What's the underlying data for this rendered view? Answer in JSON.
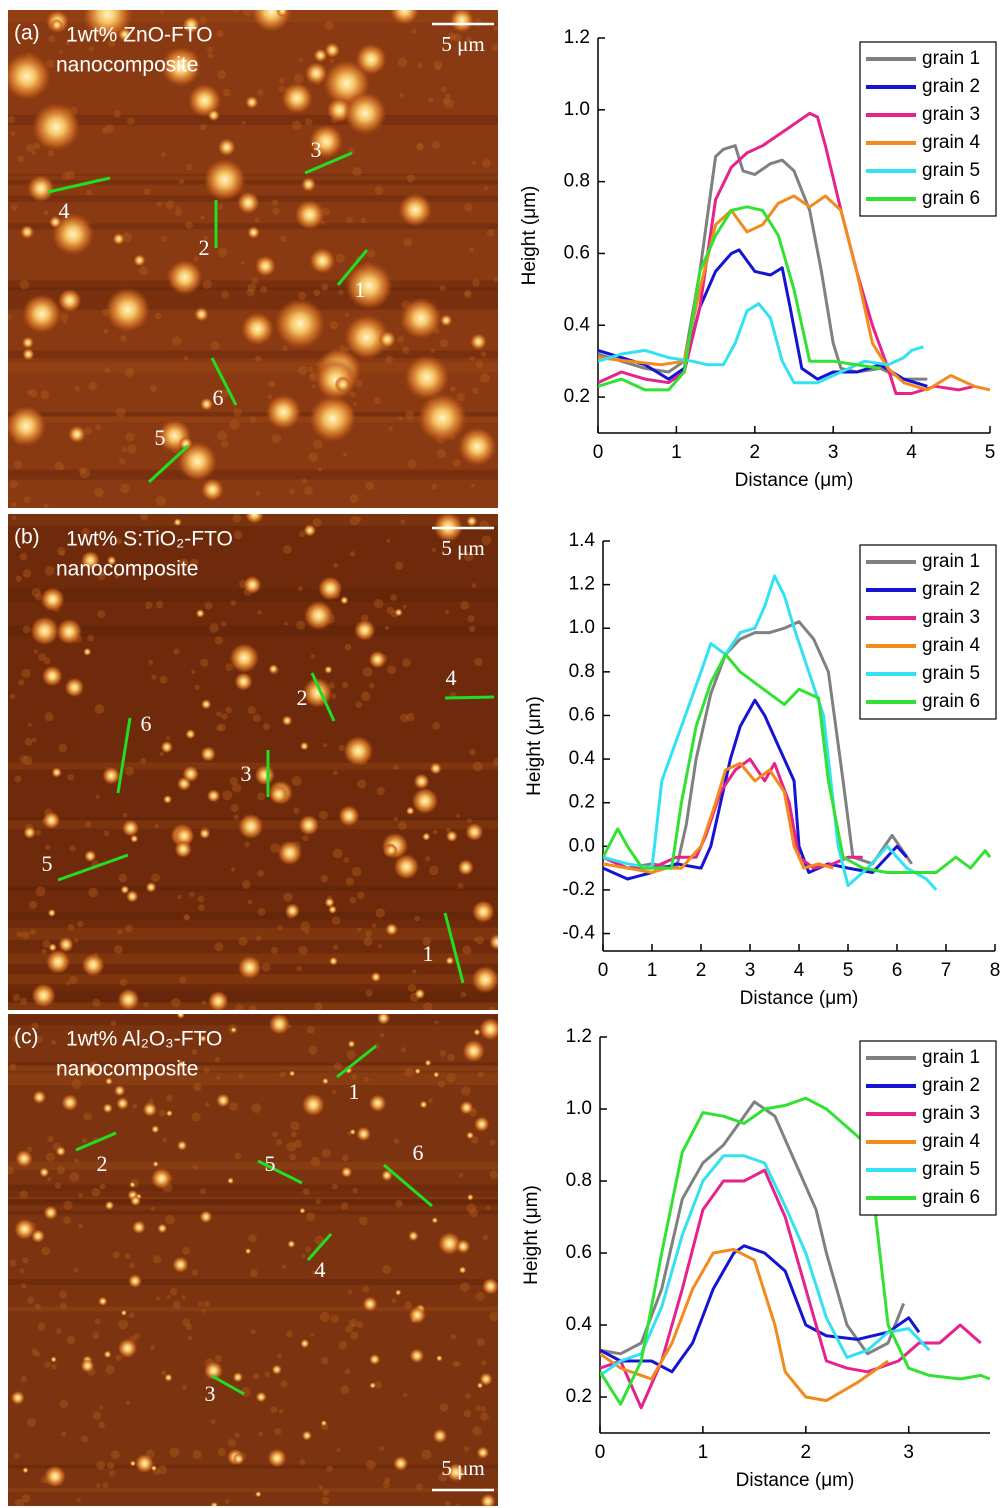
{
  "images": [
    {
      "panel": "(a)",
      "title": [
        "1wt% ZnO-FTO",
        "nanocomposite"
      ],
      "scale_bar": "5 μm",
      "markers": [
        "1",
        "2",
        "3",
        "4",
        "5",
        "6"
      ]
    },
    {
      "panel": "(b)",
      "title": [
        "1wt% S:TiO₂-FTO",
        "nanocomposite"
      ],
      "scale_bar": "5 μm",
      "markers": [
        "1",
        "2",
        "3",
        "4",
        "5",
        "6"
      ]
    },
    {
      "panel": "(c)",
      "title": [
        "1wt% Al₂O₃-FTO",
        "nanocomposite"
      ],
      "scale_bar": "5 μm",
      "markers": [
        "1",
        "2",
        "3",
        "4",
        "5",
        "6"
      ]
    }
  ],
  "chart_data": [
    {
      "type": "line",
      "xlabel": "Distance (μm)",
      "ylabel": "Height (μm)",
      "xlim": [
        0,
        5
      ],
      "ylim": [
        0.1,
        1.2
      ],
      "xticks": [
        0,
        1,
        2,
        3,
        4,
        5
      ],
      "yticks": [
        0.2,
        0.4,
        0.6,
        0.8,
        {
          "value": 1,
          "label": "1.0"
        },
        1.2
      ],
      "series": [
        {
          "name": "grain 1",
          "color": "#808080",
          "x": [
            0,
            0.3,
            0.6,
            0.9,
            1.1,
            1.3,
            1.5,
            1.6,
            1.75,
            1.85,
            2.0,
            2.2,
            2.35,
            2.5,
            2.7,
            2.85,
            3.0,
            3.1,
            3.3,
            3.6,
            3.9,
            4.2
          ],
          "values": [
            0.32,
            0.3,
            0.28,
            0.27,
            0.3,
            0.55,
            0.87,
            0.89,
            0.9,
            0.83,
            0.82,
            0.85,
            0.86,
            0.83,
            0.72,
            0.55,
            0.35,
            0.28,
            0.27,
            0.28,
            0.25,
            0.25
          ]
        },
        {
          "name": "grain 2",
          "color": "#1414d2",
          "x": [
            0,
            0.3,
            0.6,
            0.9,
            1.1,
            1.3,
            1.5,
            1.7,
            1.8,
            2.0,
            2.2,
            2.35,
            2.45,
            2.6,
            2.8,
            3.0,
            3.3,
            3.6,
            3.9,
            4.2
          ],
          "values": [
            0.33,
            0.31,
            0.29,
            0.25,
            0.28,
            0.45,
            0.55,
            0.6,
            0.61,
            0.55,
            0.54,
            0.56,
            0.45,
            0.28,
            0.25,
            0.27,
            0.27,
            0.29,
            0.25,
            0.23
          ]
        },
        {
          "name": "grain 3",
          "color": "#e6228c",
          "x": [
            0,
            0.3,
            0.6,
            0.9,
            1.1,
            1.3,
            1.5,
            1.7,
            1.9,
            2.1,
            2.3,
            2.5,
            2.7,
            2.8,
            2.9,
            3.1,
            3.3,
            3.5,
            3.7,
            3.8,
            4.0,
            4.3,
            4.6,
            4.8
          ],
          "values": [
            0.24,
            0.27,
            0.25,
            0.24,
            0.27,
            0.45,
            0.75,
            0.84,
            0.88,
            0.9,
            0.93,
            0.96,
            0.99,
            0.98,
            0.9,
            0.72,
            0.55,
            0.4,
            0.28,
            0.21,
            0.21,
            0.23,
            0.22,
            0.23
          ]
        },
        {
          "name": "grain 4",
          "color": "#f28a1c",
          "x": [
            0,
            0.4,
            0.8,
            1.1,
            1.3,
            1.5,
            1.7,
            1.9,
            2.1,
            2.3,
            2.5,
            2.7,
            2.9,
            3.1,
            3.3,
            3.5,
            3.7,
            3.9,
            4.2,
            4.5,
            4.8,
            5.0
          ],
          "values": [
            0.31,
            0.3,
            0.29,
            0.3,
            0.5,
            0.68,
            0.72,
            0.66,
            0.68,
            0.74,
            0.76,
            0.73,
            0.76,
            0.72,
            0.55,
            0.35,
            0.28,
            0.24,
            0.22,
            0.26,
            0.23,
            0.22
          ]
        },
        {
          "name": "grain 5",
          "color": "#32e2f2",
          "x": [
            0,
            0.3,
            0.6,
            0.9,
            1.2,
            1.4,
            1.6,
            1.75,
            1.9,
            2.05,
            2.2,
            2.35,
            2.5,
            2.8,
            3.1,
            3.4,
            3.7,
            3.9,
            4.0,
            4.15
          ],
          "values": [
            0.3,
            0.32,
            0.33,
            0.31,
            0.3,
            0.29,
            0.29,
            0.35,
            0.44,
            0.46,
            0.42,
            0.3,
            0.24,
            0.24,
            0.27,
            0.3,
            0.29,
            0.31,
            0.33,
            0.34
          ]
        },
        {
          "name": "grain 6",
          "color": "#32e232",
          "x": [
            0,
            0.3,
            0.6,
            0.9,
            1.1,
            1.3,
            1.5,
            1.7,
            1.9,
            2.1,
            2.3,
            2.5,
            2.7,
            3.0,
            3.3,
            3.6
          ],
          "values": [
            0.23,
            0.25,
            0.22,
            0.22,
            0.27,
            0.55,
            0.65,
            0.72,
            0.73,
            0.72,
            0.65,
            0.5,
            0.3,
            0.3,
            0.29,
            0.28
          ]
        }
      ]
    },
    {
      "type": "line",
      "xlabel": "Distance (μm)",
      "ylabel": "Height (μm)",
      "xlim": [
        0,
        8
      ],
      "ylim": [
        -0.48,
        1.4
      ],
      "xticks": [
        0,
        1,
        2,
        3,
        4,
        5,
        6,
        7,
        8
      ],
      "yticks": [
        -0.4,
        -0.2,
        {
          "value": 0,
          "label": "0.0"
        },
        0.2,
        0.4,
        0.6,
        0.8,
        {
          "value": 1,
          "label": "1.0"
        },
        1.2,
        1.4
      ],
      "series": [
        {
          "name": "grain 1",
          "color": "#808080",
          "x": [
            0,
            0.5,
            1,
            1.5,
            1.7,
            1.9,
            2.2,
            2.5,
            2.8,
            3.1,
            3.4,
            3.7,
            4.0,
            4.3,
            4.6,
            4.9,
            5.1,
            5.5,
            5.9,
            6.3
          ],
          "values": [
            -0.05,
            -0.1,
            -0.08,
            -0.1,
            0.1,
            0.4,
            0.7,
            0.88,
            0.95,
            0.98,
            0.98,
            1.0,
            1.03,
            0.95,
            0.8,
            0.3,
            -0.05,
            -0.08,
            0.05,
            -0.08
          ]
        },
        {
          "name": "grain 2",
          "color": "#1414d2",
          "x": [
            0,
            0.5,
            1,
            1.5,
            2,
            2.2,
            2.4,
            2.6,
            2.8,
            3.1,
            3.3,
            3.6,
            3.9,
            4.0,
            4.2,
            4.6,
            5.0,
            5.5,
            6.0,
            6.2
          ],
          "values": [
            -0.1,
            -0.15,
            -0.12,
            -0.08,
            -0.1,
            0,
            0.2,
            0.4,
            0.55,
            0.67,
            0.6,
            0.45,
            0.3,
            0,
            -0.12,
            -0.08,
            -0.1,
            -0.12,
            0,
            -0.05
          ]
        },
        {
          "name": "grain 3",
          "color": "#e6228c",
          "x": [
            0,
            0.5,
            1,
            1.5,
            1.9,
            2.1,
            2.4,
            2.7,
            3.0,
            3.3,
            3.5,
            3.8,
            4.0,
            4.3,
            4.7,
            5.0,
            5.3
          ],
          "values": [
            -0.05,
            -0.1,
            -0.1,
            -0.05,
            -0.05,
            0.05,
            0.25,
            0.35,
            0.4,
            0.3,
            0.38,
            0.2,
            -0.05,
            -0.1,
            -0.08,
            -0.05,
            -0.05
          ]
        },
        {
          "name": "grain 4",
          "color": "#f28a1c",
          "x": [
            0,
            0.5,
            1,
            1.3,
            1.6,
            2.0,
            2.3,
            2.5,
            2.8,
            3.1,
            3.4,
            3.7,
            3.9,
            4.1,
            4.4,
            4.7
          ],
          "values": [
            -0.08,
            -0.1,
            -0.12,
            -0.1,
            -0.1,
            0,
            0.2,
            0.35,
            0.38,
            0.3,
            0.35,
            0.25,
            0,
            -0.1,
            -0.08,
            -0.1
          ]
        },
        {
          "name": "grain 5",
          "color": "#32e2f2",
          "x": [
            0,
            0.5,
            1,
            1.2,
            1.6,
            2.0,
            2.2,
            2.5,
            2.8,
            3.1,
            3.3,
            3.5,
            3.7,
            3.9,
            4.2,
            4.5,
            4.8,
            5.0,
            5.4,
            5.8,
            6.2,
            6.6,
            6.8
          ],
          "values": [
            -0.05,
            -0.08,
            -0.1,
            0.3,
            0.55,
            0.8,
            0.93,
            0.88,
            0.98,
            1.0,
            1.1,
            1.24,
            1.15,
            1.0,
            0.8,
            0.6,
            0,
            -0.18,
            -0.1,
            0,
            -0.1,
            -0.15,
            -0.2
          ]
        },
        {
          "name": "grain 6",
          "color": "#32e232",
          "x": [
            0,
            0.3,
            0.5,
            0.8,
            1.1,
            1.4,
            1.6,
            1.9,
            2.2,
            2.5,
            2.8,
            3.1,
            3.4,
            3.7,
            4.0,
            4.4,
            4.6,
            4.9,
            5.3,
            5.8,
            6.3,
            6.8,
            7.2,
            7.5,
            7.8,
            7.9
          ],
          "values": [
            -0.05,
            0.08,
            0,
            -0.1,
            -0.1,
            -0.1,
            0.2,
            0.55,
            0.75,
            0.88,
            0.8,
            0.75,
            0.7,
            0.65,
            0.72,
            0.68,
            0.3,
            -0.05,
            -0.1,
            -0.12,
            -0.12,
            -0.12,
            -0.05,
            -0.1,
            -0.02,
            -0.05
          ]
        }
      ]
    },
    {
      "type": "line",
      "xlabel": "Distance (μm)",
      "ylabel": "Height (μm)",
      "xlim": [
        0,
        3.79
      ],
      "ylim": [
        0.1,
        1.2
      ],
      "xticks": [
        0,
        1,
        2,
        3
      ],
      "yticks": [
        0.2,
        0.4,
        0.6,
        0.8,
        {
          "value": 1,
          "label": "1.0"
        },
        1.2
      ],
      "series": [
        {
          "name": "grain 1",
          "color": "#808080",
          "x": [
            0,
            0.2,
            0.4,
            0.6,
            0.8,
            1.0,
            1.2,
            1.4,
            1.5,
            1.7,
            1.9,
            2.1,
            2.2,
            2.4,
            2.6,
            2.8,
            2.95
          ],
          "values": [
            0.33,
            0.32,
            0.35,
            0.5,
            0.75,
            0.85,
            0.9,
            0.98,
            1.02,
            0.98,
            0.85,
            0.72,
            0.6,
            0.4,
            0.32,
            0.35,
            0.46
          ]
        },
        {
          "name": "grain 2",
          "color": "#1414d2",
          "x": [
            0,
            0.2,
            0.5,
            0.7,
            0.9,
            1.1,
            1.3,
            1.4,
            1.6,
            1.8,
            2.0,
            2.2,
            2.5,
            2.8,
            3.0,
            3.1
          ],
          "values": [
            0.33,
            0.3,
            0.3,
            0.27,
            0.35,
            0.5,
            0.6,
            0.62,
            0.6,
            0.55,
            0.4,
            0.37,
            0.36,
            0.38,
            0.42,
            0.38
          ]
        },
        {
          "name": "grain 3",
          "color": "#e6228c",
          "x": [
            0,
            0.2,
            0.4,
            0.6,
            0.8,
            1.0,
            1.2,
            1.4,
            1.6,
            1.8,
            2.0,
            2.2,
            2.4,
            2.6,
            2.9,
            3.1,
            3.3,
            3.5,
            3.7
          ],
          "values": [
            0.28,
            0.3,
            0.17,
            0.3,
            0.5,
            0.72,
            0.8,
            0.8,
            0.83,
            0.7,
            0.5,
            0.3,
            0.28,
            0.27,
            0.3,
            0.35,
            0.35,
            0.4,
            0.35
          ]
        },
        {
          "name": "grain 4",
          "color": "#f28a1c",
          "x": [
            0,
            0.2,
            0.5,
            0.7,
            0.9,
            1.1,
            1.3,
            1.5,
            1.7,
            1.8,
            2.0,
            2.2,
            2.5,
            2.8
          ],
          "values": [
            0.32,
            0.28,
            0.25,
            0.35,
            0.5,
            0.6,
            0.61,
            0.58,
            0.4,
            0.27,
            0.2,
            0.19,
            0.24,
            0.3
          ]
        },
        {
          "name": "grain 5",
          "color": "#32e2f2",
          "x": [
            0,
            0.2,
            0.4,
            0.6,
            0.8,
            1.0,
            1.2,
            1.4,
            1.6,
            1.8,
            2.0,
            2.2,
            2.4,
            2.6,
            2.8,
            3.0,
            3.2
          ],
          "values": [
            0.26,
            0.3,
            0.32,
            0.45,
            0.65,
            0.8,
            0.87,
            0.87,
            0.85,
            0.73,
            0.6,
            0.42,
            0.31,
            0.33,
            0.38,
            0.39,
            0.33
          ]
        },
        {
          "name": "grain 6",
          "color": "#32e232",
          "x": [
            0,
            0.2,
            0.4,
            0.6,
            0.8,
            1.0,
            1.2,
            1.4,
            1.6,
            1.8,
            2.0,
            2.2,
            2.4,
            2.6,
            2.8,
            3.0,
            3.2,
            3.5,
            3.7,
            3.79
          ],
          "values": [
            0.27,
            0.18,
            0.3,
            0.6,
            0.88,
            0.99,
            0.98,
            0.96,
            1.0,
            1.01,
            1.03,
            1.0,
            0.95,
            0.9,
            0.4,
            0.28,
            0.26,
            0.25,
            0.26,
            0.25
          ]
        }
      ]
    }
  ]
}
